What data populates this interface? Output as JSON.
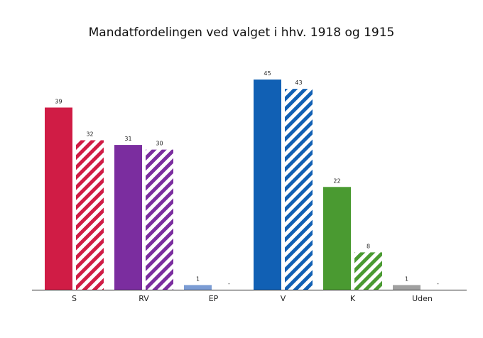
{
  "chart_data": {
    "type": "bar",
    "title": "Mandatfordelingen ved valget i hhv. 1918 og 1915",
    "xlabel": "",
    "ylabel": "",
    "ylim": [
      0,
      45
    ],
    "grid": false,
    "legend": "none",
    "categories": [
      "S",
      "RV",
      "EP",
      "V",
      "K",
      "Uden"
    ],
    "colors": [
      "#d01c45",
      "#7b2d9f",
      "#7b9cd4",
      "#1160b4",
      "#4a9a31",
      "#a0a0a0"
    ],
    "missing_marker": "-",
    "series": [
      {
        "pattern": "solid",
        "values": [
          39,
          31,
          1,
          45,
          22,
          1
        ]
      },
      {
        "pattern": "hatched",
        "values": [
          32,
          30,
          null,
          43,
          8,
          null
        ]
      }
    ]
  }
}
